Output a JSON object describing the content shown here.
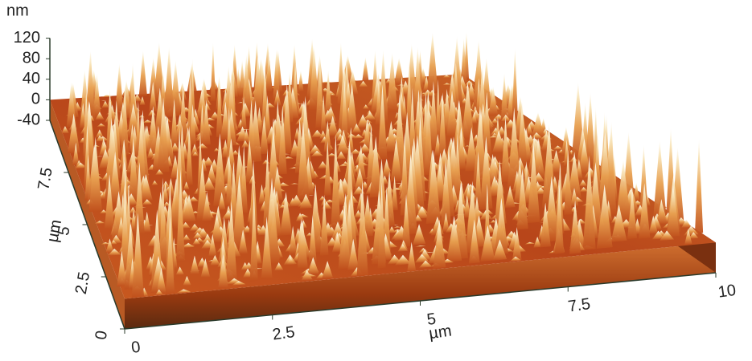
{
  "chart_data": {
    "type": "surface3d",
    "zlabel": "nm",
    "zlim": [
      -40,
      120
    ],
    "zticks": [
      -40,
      0,
      40,
      80,
      120
    ],
    "xlabel": "µm",
    "xlim": [
      0,
      10
    ],
    "xticks": [
      0,
      2.5,
      5,
      7.5,
      10
    ],
    "ylabel": "µm",
    "ylim": [
      0,
      10
    ],
    "yticks": [
      0,
      2.5,
      5,
      7.5
    ]
  }
}
